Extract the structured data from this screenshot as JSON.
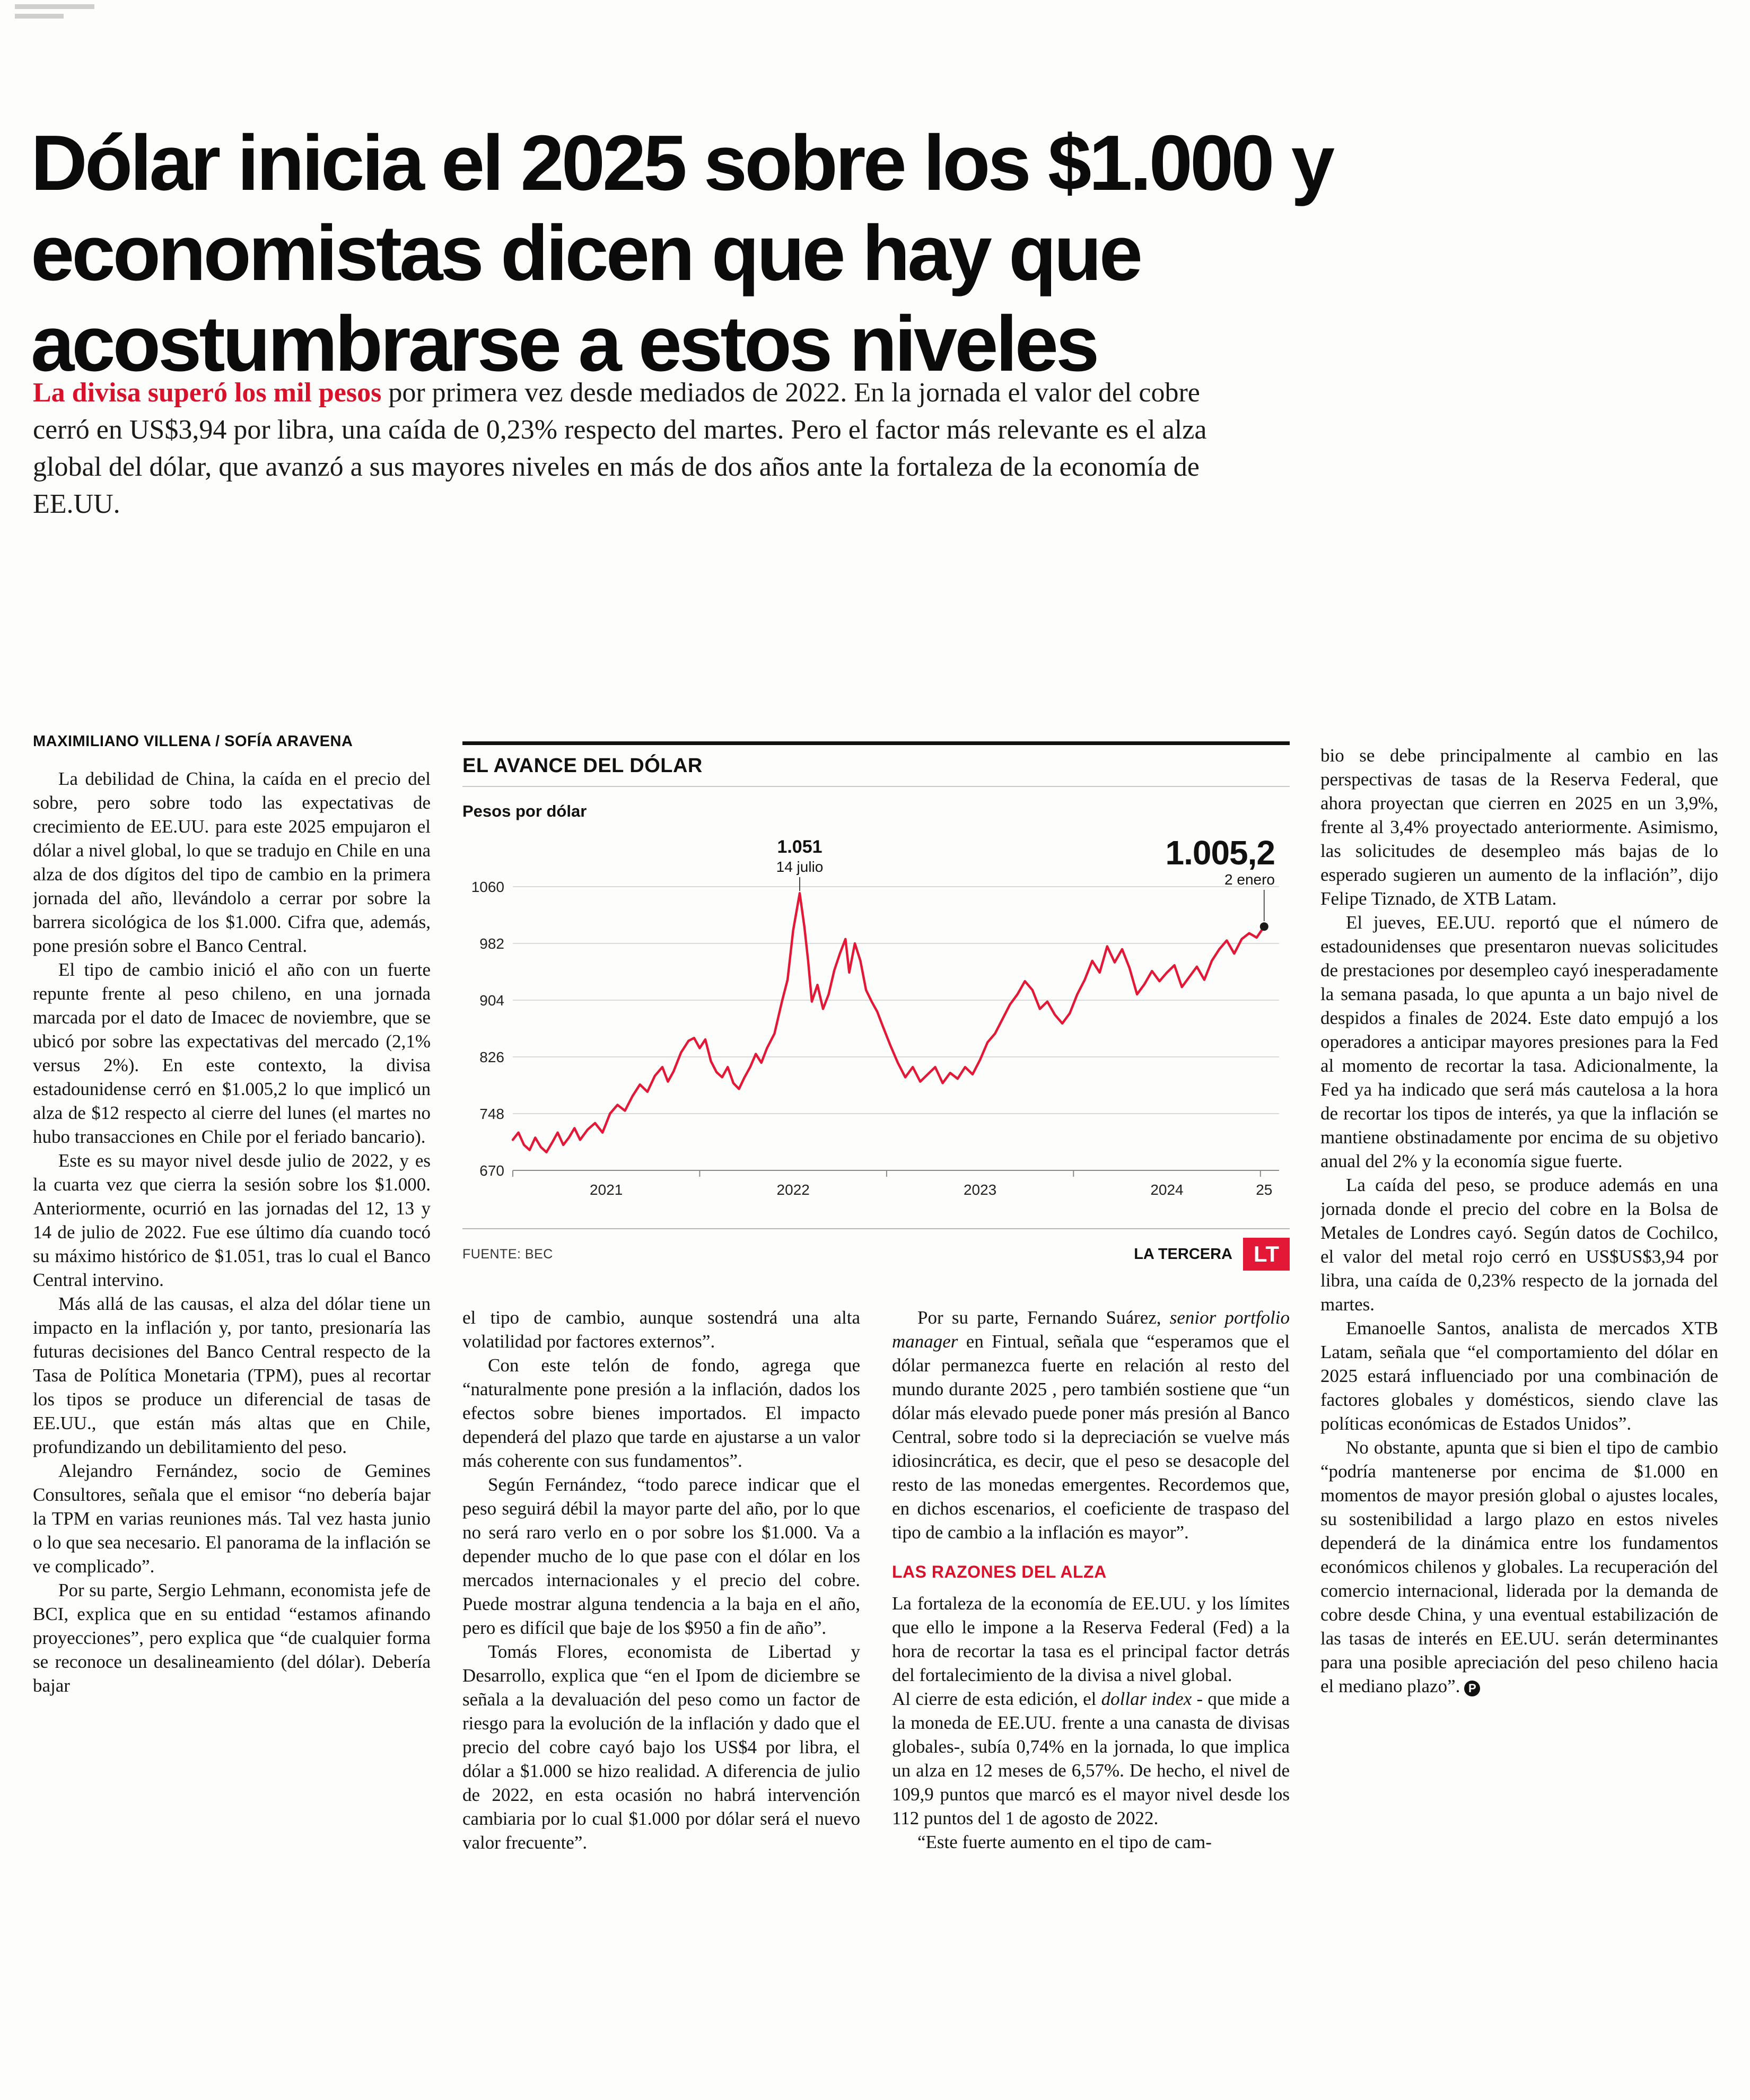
{
  "page": {
    "headline_lines": [
      "Dólar inicia el 2025 sobre los $1.000 y",
      "economistas dicen que hay que",
      "acostumbrarse a estos niveles"
    ],
    "lead_highlight": "La divisa superó los mil pesos",
    "lead_rest": " por primera vez desde mediados de 2022. En la jornada el valor del cobre cerró en US$3,94 por libra, una caída de 0,23% respecto del martes. Pero el factor más relevante es el alza global del dólar, que avanzó a sus mayores niveles en más de dos años ante la fortaleza de la economía de EE.UU.",
    "byline": "MAXIMILIANO VILLENA / SOFÍA ARAVENA"
  },
  "article": {
    "col1": [
      "La debilidad de China, la caída en el precio del sobre, pero sobre todo las expectativas de crecimiento de EE.UU. para este 2025 empujaron el dólar a nivel global, lo que se tradujo en Chile en una alza de dos dígitos del tipo de cambio en la primera jornada del año, llevándolo a cerrar por sobre la barrera sicológica de los $1.000. Cifra que, además, pone presión sobre el Banco Central.",
      "El tipo de cambio inició el año con un fuerte repunte frente al peso chileno, en una jornada marcada por el dato de Imacec de noviembre, que se ubicó por sobre las expectativas del mercado (2,1% versus 2%). En este contexto, la divisa estadounidense cerró en $1.005,2 lo que implicó un alza de $12 respecto al cierre del lunes (el martes no hubo transacciones en Chile por el feriado bancario).",
      "Este es su mayor nivel desde julio de 2022, y es la cuarta vez que cierra la sesión sobre los $1.000. Anteriormente, ocurrió en las jornadas del 12, 13 y 14 de julio de 2022. Fue ese último día cuando tocó su máximo histórico de $1.051, tras lo cual el Banco Central intervino.",
      "Más allá de las causas, el alza del dólar tiene un impacto en la inflación y, por tanto, presionaría las futuras decisiones del Banco Central respecto de la Tasa de Política Monetaria (TPM), pues al recortar los tipos se produce un diferencial de tasas de EE.UU., que están más altas que en Chile, profundizando un debilitamiento del peso.",
      "Alejandro Fernández, socio de Gemines Consultores, señala que el emisor “no debería bajar la TPM en varias reuniones más. Tal vez hasta junio o lo que sea necesario. El panorama de la inflación se ve complicado”.",
      "Por su parte, Sergio Lehmann, economista jefe de BCI, explica que en su entidad “estamos afinando proyecciones”, pero explica que “de cualquier forma se reconoce un desalineamiento (del dólar). Debería bajar"
    ],
    "col2": [
      "el tipo de cambio, aunque sostendrá una alta volatilidad por factores externos”.",
      "Con este telón de fondo, agrega que “naturalmente pone presión a la inflación, dados los efectos sobre bienes importados. El impacto dependerá del plazo que tarde en ajustarse a un valor más coherente con sus fundamentos”.",
      "Según Fernández, “todo parece indicar que el peso seguirá débil la mayor parte del año, por lo que no será raro verlo en o por sobre los $1.000. Va a depender mucho de lo que pase con el dólar en los mercados internacionales y el precio del cobre. Puede mostrar alguna tendencia a la baja en el año, pero es difícil que baje de los $950 a fin de año”.",
      "Tomás Flores, economista de Libertad y Desarrollo, explica que “en el Ipom de diciembre se señala a la devaluación del peso como un factor de riesgo para la evolución de la inflación y dado que el precio del cobre cayó bajo los US$4 por libra, el dólar a $1.000 se hizo realidad. A diferencia de julio de 2022, en esta ocasión no habrá intervención cambiaria por lo cual $1.000 por dólar será el nuevo valor frecuente”."
    ],
    "col3": {
      "para1": {
        "pre": "Por su parte, Fernando Suárez, ",
        "italic": "senior portfolio manager",
        "post": " en Fintual, señala que “esperamos que el dólar permanezca fuerte en relación al resto del mundo durante 2025 , pero también sostiene que “un dólar más elevado puede poner más presión al Banco Central, sobre todo si la depreciación se vuelve más idiosincrática, es decir, que el peso se desacople del resto de las monedas emergentes. Recordemos que, en dichos escenarios, el coeficiente de traspaso del tipo de cambio a la inflación es mayor”."
      },
      "subhead": "LAS RAZONES DEL ALZA",
      "para2": "La fortaleza de la economía de EE.UU. y los límites que ello le impone a la Reserva Federal (Fed) a la hora de recortar la tasa es el principal factor detrás del fortalecimiento de la divisa a nivel global.",
      "para3": {
        "pre": "Al cierre de esta edición, el ",
        "italic": "dollar index",
        "post": " - que mide a la moneda de EE.UU. frente a una canasta de divisas globales-, subía 0,74% en la jornada, lo que implica un alza en 12 meses de 6,57%. De hecho, el nivel de 109,9 puntos que marcó es el mayor nivel desde los 112 puntos del 1 de agosto de 2022."
      },
      "para4": "“Este fuerte aumento en el tipo de cam-"
    },
    "col4": [
      "bio se debe principalmente al cambio en las perspectivas de tasas de la Reserva Federal, que ahora proyectan que cierren en 2025 en un 3,9%, frente al 3,4% proyectado anteriormente. Asimismo, las solicitudes de desempleo más bajas de lo esperado sugieren un aumento de la inflación”, dijo Felipe Tiznado, de XTB Latam.",
      "El jueves, EE.UU. reportó que el número de estadounidenses que presentaron nuevas solicitudes de prestaciones por desempleo cayó inesperadamente la semana pasada, lo que apunta a un bajo nivel de despidos a finales de 2024. Este dato empujó a los operadores a anticipar mayores presiones para la Fed al momento de recortar la tasa. Adicionalmente, la Fed ya ha indicado que será más cautelosa a la hora de recortar los tipos de interés, ya que la inflación se mantiene obstinadamente por encima de su objetivo anual del 2% y la economía sigue fuerte.",
      "La caída del peso, se produce además en una jornada donde el precio del cobre en la Bolsa de Metales de Londres cayó. Según datos de Cochilco, el valor del metal rojo cerró en US$US$3,94 por libra, una caída de 0,23% respecto de la jornada del martes.",
      "Emanoelle Santos, analista de mercados XTB Latam, señala que “el comportamiento del dólar en 2025 estará influenciado por una combinación de factores globales y domésticos, siendo clave las políticas económicas de Estados Unidos”.",
      "No obstante, apunta que si bien el tipo de cambio “podría mantenerse por encima de $1.000 en momentos de mayor presión global o ajustes locales, su sostenibilidad a largo plazo en estos niveles dependerá de la dinámica entre los fundamentos económicos chilenos y globales. La recuperación del comercio internacional, liderada por la demanda de cobre desde China, y una eventual estabilización de las tasas de interés en EE.UU. serán determinantes para una posible apreciación del peso chileno hacia el mediano plazo”."
    ],
    "endmark": "P"
  },
  "chart": {
    "kicker": "EL AVANCE DEL DÓLAR",
    "unit_label": "Pesos por dólar",
    "source": "FUENTE: BEC",
    "credit": "LA TERCERA",
    "logo": "LT"
  },
  "chart_data": {
    "type": "line",
    "title": "EL AVANCE DEL DÓLAR",
    "ylabel": "Pesos por dólar",
    "ylim": [
      670,
      1060
    ],
    "yticks": [
      1060,
      982,
      904,
      826,
      748,
      670
    ],
    "xlim": [
      2021,
      2025.1
    ],
    "xticks": [
      {
        "pos": 2021.5,
        "label": "2021"
      },
      {
        "pos": 2022.5,
        "label": "2022"
      },
      {
        "pos": 2023.5,
        "label": "2023"
      },
      {
        "pos": 2024.5,
        "label": "2024"
      },
      {
        "pos": 2025.02,
        "label": "25"
      }
    ],
    "year_ticks": [
      2021,
      2022,
      2023,
      2024,
      2025
    ],
    "grid": true,
    "source": "FUENTE: BEC",
    "annotations": [
      {
        "x": 2022.535,
        "y": 1051,
        "label": "1.051",
        "sublabel": "14 julio"
      },
      {
        "x": 2025.02,
        "y": 1005.2,
        "label": "1.005,2",
        "sublabel": "2 enero"
      }
    ],
    "series": [
      {
        "name": "Pesos por dólar",
        "color": "#e31837",
        "points": [
          [
            2021.0,
            712
          ],
          [
            2021.03,
            722
          ],
          [
            2021.06,
            705
          ],
          [
            2021.09,
            698
          ],
          [
            2021.12,
            715
          ],
          [
            2021.15,
            702
          ],
          [
            2021.18,
            695
          ],
          [
            2021.21,
            708
          ],
          [
            2021.24,
            722
          ],
          [
            2021.27,
            705
          ],
          [
            2021.3,
            715
          ],
          [
            2021.33,
            728
          ],
          [
            2021.36,
            712
          ],
          [
            2021.4,
            726
          ],
          [
            2021.44,
            735
          ],
          [
            2021.48,
            722
          ],
          [
            2021.52,
            748
          ],
          [
            2021.56,
            760
          ],
          [
            2021.6,
            752
          ],
          [
            2021.64,
            772
          ],
          [
            2021.68,
            788
          ],
          [
            2021.72,
            778
          ],
          [
            2021.76,
            800
          ],
          [
            2021.8,
            812
          ],
          [
            2021.83,
            792
          ],
          [
            2021.86,
            806
          ],
          [
            2021.9,
            832
          ],
          [
            2021.94,
            848
          ],
          [
            2021.97,
            852
          ],
          [
            2022.0,
            838
          ],
          [
            2022.03,
            850
          ],
          [
            2022.06,
            820
          ],
          [
            2022.09,
            805
          ],
          [
            2022.12,
            798
          ],
          [
            2022.15,
            812
          ],
          [
            2022.18,
            790
          ],
          [
            2022.21,
            782
          ],
          [
            2022.24,
            798
          ],
          [
            2022.27,
            812
          ],
          [
            2022.3,
            830
          ],
          [
            2022.33,
            818
          ],
          [
            2022.36,
            838
          ],
          [
            2022.4,
            858
          ],
          [
            2022.44,
            902
          ],
          [
            2022.47,
            932
          ],
          [
            2022.5,
            1000
          ],
          [
            2022.535,
            1051
          ],
          [
            2022.56,
            1005
          ],
          [
            2022.58,
            958
          ],
          [
            2022.6,
            902
          ],
          [
            2022.63,
            925
          ],
          [
            2022.66,
            892
          ],
          [
            2022.69,
            912
          ],
          [
            2022.72,
            945
          ],
          [
            2022.75,
            968
          ],
          [
            2022.78,
            988
          ],
          [
            2022.8,
            942
          ],
          [
            2022.83,
            982
          ],
          [
            2022.86,
            958
          ],
          [
            2022.89,
            918
          ],
          [
            2022.92,
            902
          ],
          [
            2022.95,
            888
          ],
          [
            2022.98,
            868
          ],
          [
            2023.02,
            842
          ],
          [
            2023.06,
            818
          ],
          [
            2023.1,
            798
          ],
          [
            2023.14,
            812
          ],
          [
            2023.18,
            792
          ],
          [
            2023.22,
            802
          ],
          [
            2023.26,
            812
          ],
          [
            2023.3,
            790
          ],
          [
            2023.34,
            804
          ],
          [
            2023.38,
            796
          ],
          [
            2023.42,
            812
          ],
          [
            2023.46,
            802
          ],
          [
            2023.5,
            822
          ],
          [
            2023.54,
            846
          ],
          [
            2023.58,
            858
          ],
          [
            2023.62,
            878
          ],
          [
            2023.66,
            898
          ],
          [
            2023.7,
            912
          ],
          [
            2023.74,
            930
          ],
          [
            2023.78,
            918
          ],
          [
            2023.82,
            892
          ],
          [
            2023.86,
            902
          ],
          [
            2023.9,
            884
          ],
          [
            2023.94,
            872
          ],
          [
            2023.98,
            886
          ],
          [
            2024.02,
            912
          ],
          [
            2024.06,
            932
          ],
          [
            2024.1,
            958
          ],
          [
            2024.14,
            942
          ],
          [
            2024.18,
            978
          ],
          [
            2024.22,
            956
          ],
          [
            2024.26,
            974
          ],
          [
            2024.3,
            948
          ],
          [
            2024.34,
            912
          ],
          [
            2024.38,
            926
          ],
          [
            2024.42,
            944
          ],
          [
            2024.46,
            930
          ],
          [
            2024.5,
            942
          ],
          [
            2024.54,
            952
          ],
          [
            2024.58,
            922
          ],
          [
            2024.62,
            936
          ],
          [
            2024.66,
            950
          ],
          [
            2024.7,
            932
          ],
          [
            2024.74,
            958
          ],
          [
            2024.78,
            974
          ],
          [
            2024.82,
            986
          ],
          [
            2024.86,
            968
          ],
          [
            2024.9,
            988
          ],
          [
            2024.94,
            996
          ],
          [
            2024.98,
            990
          ],
          [
            2025.02,
            1005.2
          ]
        ]
      }
    ]
  }
}
